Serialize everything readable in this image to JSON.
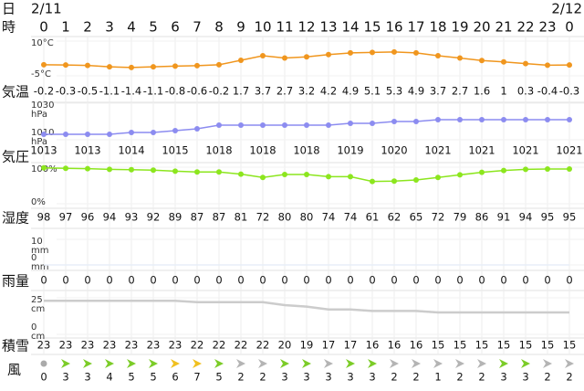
{
  "header": {
    "date_start": "2/11",
    "date_end": "2/12"
  },
  "row_labels": {
    "day": "日",
    "hour": "時",
    "temp": "気温",
    "pressure": "気圧",
    "humidity": "湿度",
    "precip": "雨量",
    "snow": "積雪",
    "wind": "風"
  },
  "hours": [
    0,
    1,
    2,
    3,
    4,
    5,
    6,
    7,
    8,
    9,
    10,
    11,
    12,
    13,
    14,
    15,
    16,
    17,
    18,
    19,
    20,
    21,
    22,
    23,
    0
  ],
  "chart_data": [
    {
      "type": "line",
      "color": "#f0961e",
      "ylim": [
        -5,
        10
      ],
      "yticks": [
        {
          "value": 10,
          "label": "10°C"
        },
        {
          "value": -5,
          "label": "-5°C"
        }
      ],
      "values": [
        -0.2,
        -0.3,
        -0.5,
        -1.1,
        -1.4,
        -1.1,
        -0.8,
        -0.6,
        -0.2,
        1.7,
        3.7,
        2.7,
        3.2,
        4.2,
        4.9,
        5.1,
        5.3,
        4.9,
        3.7,
        2.7,
        1.6,
        1,
        0.3,
        -0.4,
        -0.3
      ]
    },
    {
      "type": "line",
      "color": "#8c8cf0",
      "ylim": [
        1010,
        1030
      ],
      "unit": "hPa",
      "yticks": [
        1030,
        1010
      ],
      "values": [
        1013,
        1013,
        1013,
        1013,
        1014,
        1014,
        1015,
        1016,
        1018,
        1018,
        1018,
        1018,
        1018,
        1018,
        1019,
        1019,
        1020,
        1020,
        1021,
        1021,
        1021,
        1021,
        1021,
        1021,
        1021
      ]
    },
    {
      "type": "line",
      "color": "#8ce61e",
      "ylim": [
        0,
        100
      ],
      "yticks": [
        {
          "value": 100,
          "label": "100%"
        },
        {
          "value": 0,
          "label": "0%"
        }
      ],
      "values": [
        98,
        97,
        96,
        94,
        93,
        92,
        89,
        87,
        87,
        81,
        72,
        80,
        80,
        74,
        74,
        61,
        62,
        65,
        72,
        79,
        86,
        91,
        94,
        95,
        95
      ]
    },
    {
      "type": "line",
      "color": "#e8eef8",
      "ylim": [
        0,
        10
      ],
      "unit": "mm",
      "yticks": [
        10,
        0
      ],
      "values": [
        0,
        0,
        0,
        0,
        0,
        0,
        0,
        0,
        0,
        0,
        0,
        0,
        0,
        0,
        0,
        0,
        0,
        0,
        0,
        0,
        0,
        0,
        0,
        0,
        0
      ]
    },
    {
      "type": "line",
      "color": "#cccccc",
      "ylim": [
        0,
        25
      ],
      "unit": "cm",
      "yticks": [
        25,
        0
      ],
      "values": [
        23,
        23,
        23,
        23,
        23,
        23,
        23,
        22,
        22,
        22,
        22,
        20,
        19,
        17,
        17,
        16,
        16,
        16,
        15,
        15,
        15,
        15,
        15,
        15,
        15
      ]
    }
  ],
  "wind": {
    "values": [
      0,
      3,
      3,
      4,
      5,
      5,
      6,
      7,
      5,
      2,
      2,
      3,
      3,
      3,
      3,
      3,
      2,
      2,
      1,
      2,
      2,
      3,
      3,
      2,
      2
    ],
    "colors": [
      "#aaaaaa",
      "#7ccc28",
      "#7ccc28",
      "#7ccc28",
      "#7ccc28",
      "#7ccc28",
      "#f0c020",
      "#f0c020",
      "#7ccc28",
      "#b4b4b4",
      "#b4b4b4",
      "#7ccc28",
      "#7ccc28",
      "#b4b4b4",
      "#7ccc28",
      "#7ccc28",
      "#b4b4b4",
      "#b4b4b4",
      "#b4b4b4",
      "#b4b4b4",
      "#b4b4b4",
      "#7ccc28",
      "#7ccc28",
      "#b4b4b4",
      "#b4b4b4"
    ]
  }
}
